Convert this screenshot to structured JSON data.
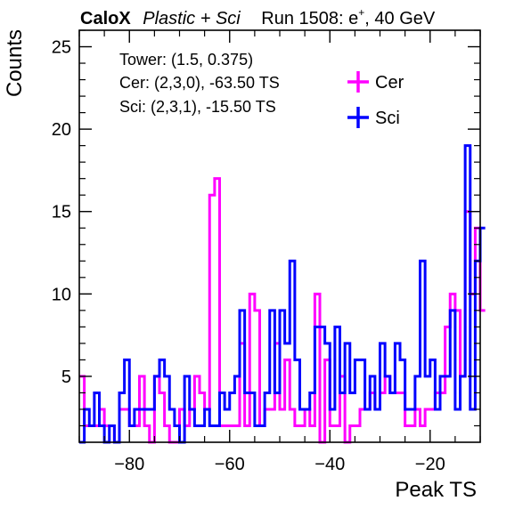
{
  "header": {
    "brand": "CaloX",
    "subtitle": "Plastic + Sci",
    "run": "Run 1508: e",
    "run_sup": "+",
    "run_tail": ", 40 GeV"
  },
  "info": {
    "tower": "Tower: (1.5, 0.375)",
    "cer": "Cer: (2,3,0), -63.50 TS",
    "sci": "Sci: (2,3,1), -15.50 TS"
  },
  "chart_data": {
    "type": "line",
    "step": true,
    "xlabel": "Peak TS",
    "ylabel": "Counts",
    "xlim": [
      -90,
      -10
    ],
    "ylim": [
      1,
      26
    ],
    "bin_width": 1,
    "x_start": -90,
    "xticks": [
      -80,
      -60,
      -40,
      -20
    ],
    "yticks": [
      5,
      10,
      15,
      20,
      25
    ],
    "legend_position": "top-right",
    "series": [
      {
        "name": "Cer",
        "color": "#ff00ff",
        "values": [
          5,
          2,
          2,
          2,
          3,
          2,
          2,
          1,
          3,
          3,
          2,
          2,
          5,
          2,
          1,
          5,
          4,
          2,
          1,
          1,
          3,
          2,
          3,
          5,
          4,
          3,
          16,
          17,
          2,
          2,
          2,
          2,
          7,
          2,
          10,
          9,
          2,
          3,
          3,
          7,
          3,
          6,
          3,
          2,
          2,
          3,
          2,
          10,
          1,
          6,
          2,
          2,
          5,
          1,
          2,
          2,
          3,
          3,
          4,
          3,
          4,
          5,
          4,
          4,
          4,
          2,
          2,
          3,
          2,
          3,
          3,
          4,
          4,
          8,
          10,
          9,
          5,
          15,
          10,
          14,
          9
        ]
      },
      {
        "name": "Sci",
        "color": "#0000ff",
        "values": [
          1,
          3,
          2,
          4,
          2,
          1,
          2,
          1,
          4,
          6,
          2,
          3,
          3,
          3,
          3,
          5,
          6,
          5,
          3,
          2,
          1,
          5,
          3,
          2,
          2,
          3,
          2,
          2,
          4,
          3,
          4,
          5,
          9,
          4,
          4,
          2,
          2,
          4,
          9,
          4,
          9,
          7,
          12,
          6,
          3,
          3,
          4,
          8,
          8,
          7,
          3,
          8,
          4,
          7,
          4,
          6,
          6,
          3,
          5,
          3,
          7,
          5,
          4,
          7,
          6,
          3,
          3,
          5,
          12,
          5,
          6,
          3,
          5,
          5,
          9,
          3,
          5,
          19,
          3,
          12,
          14
        ]
      }
    ]
  }
}
